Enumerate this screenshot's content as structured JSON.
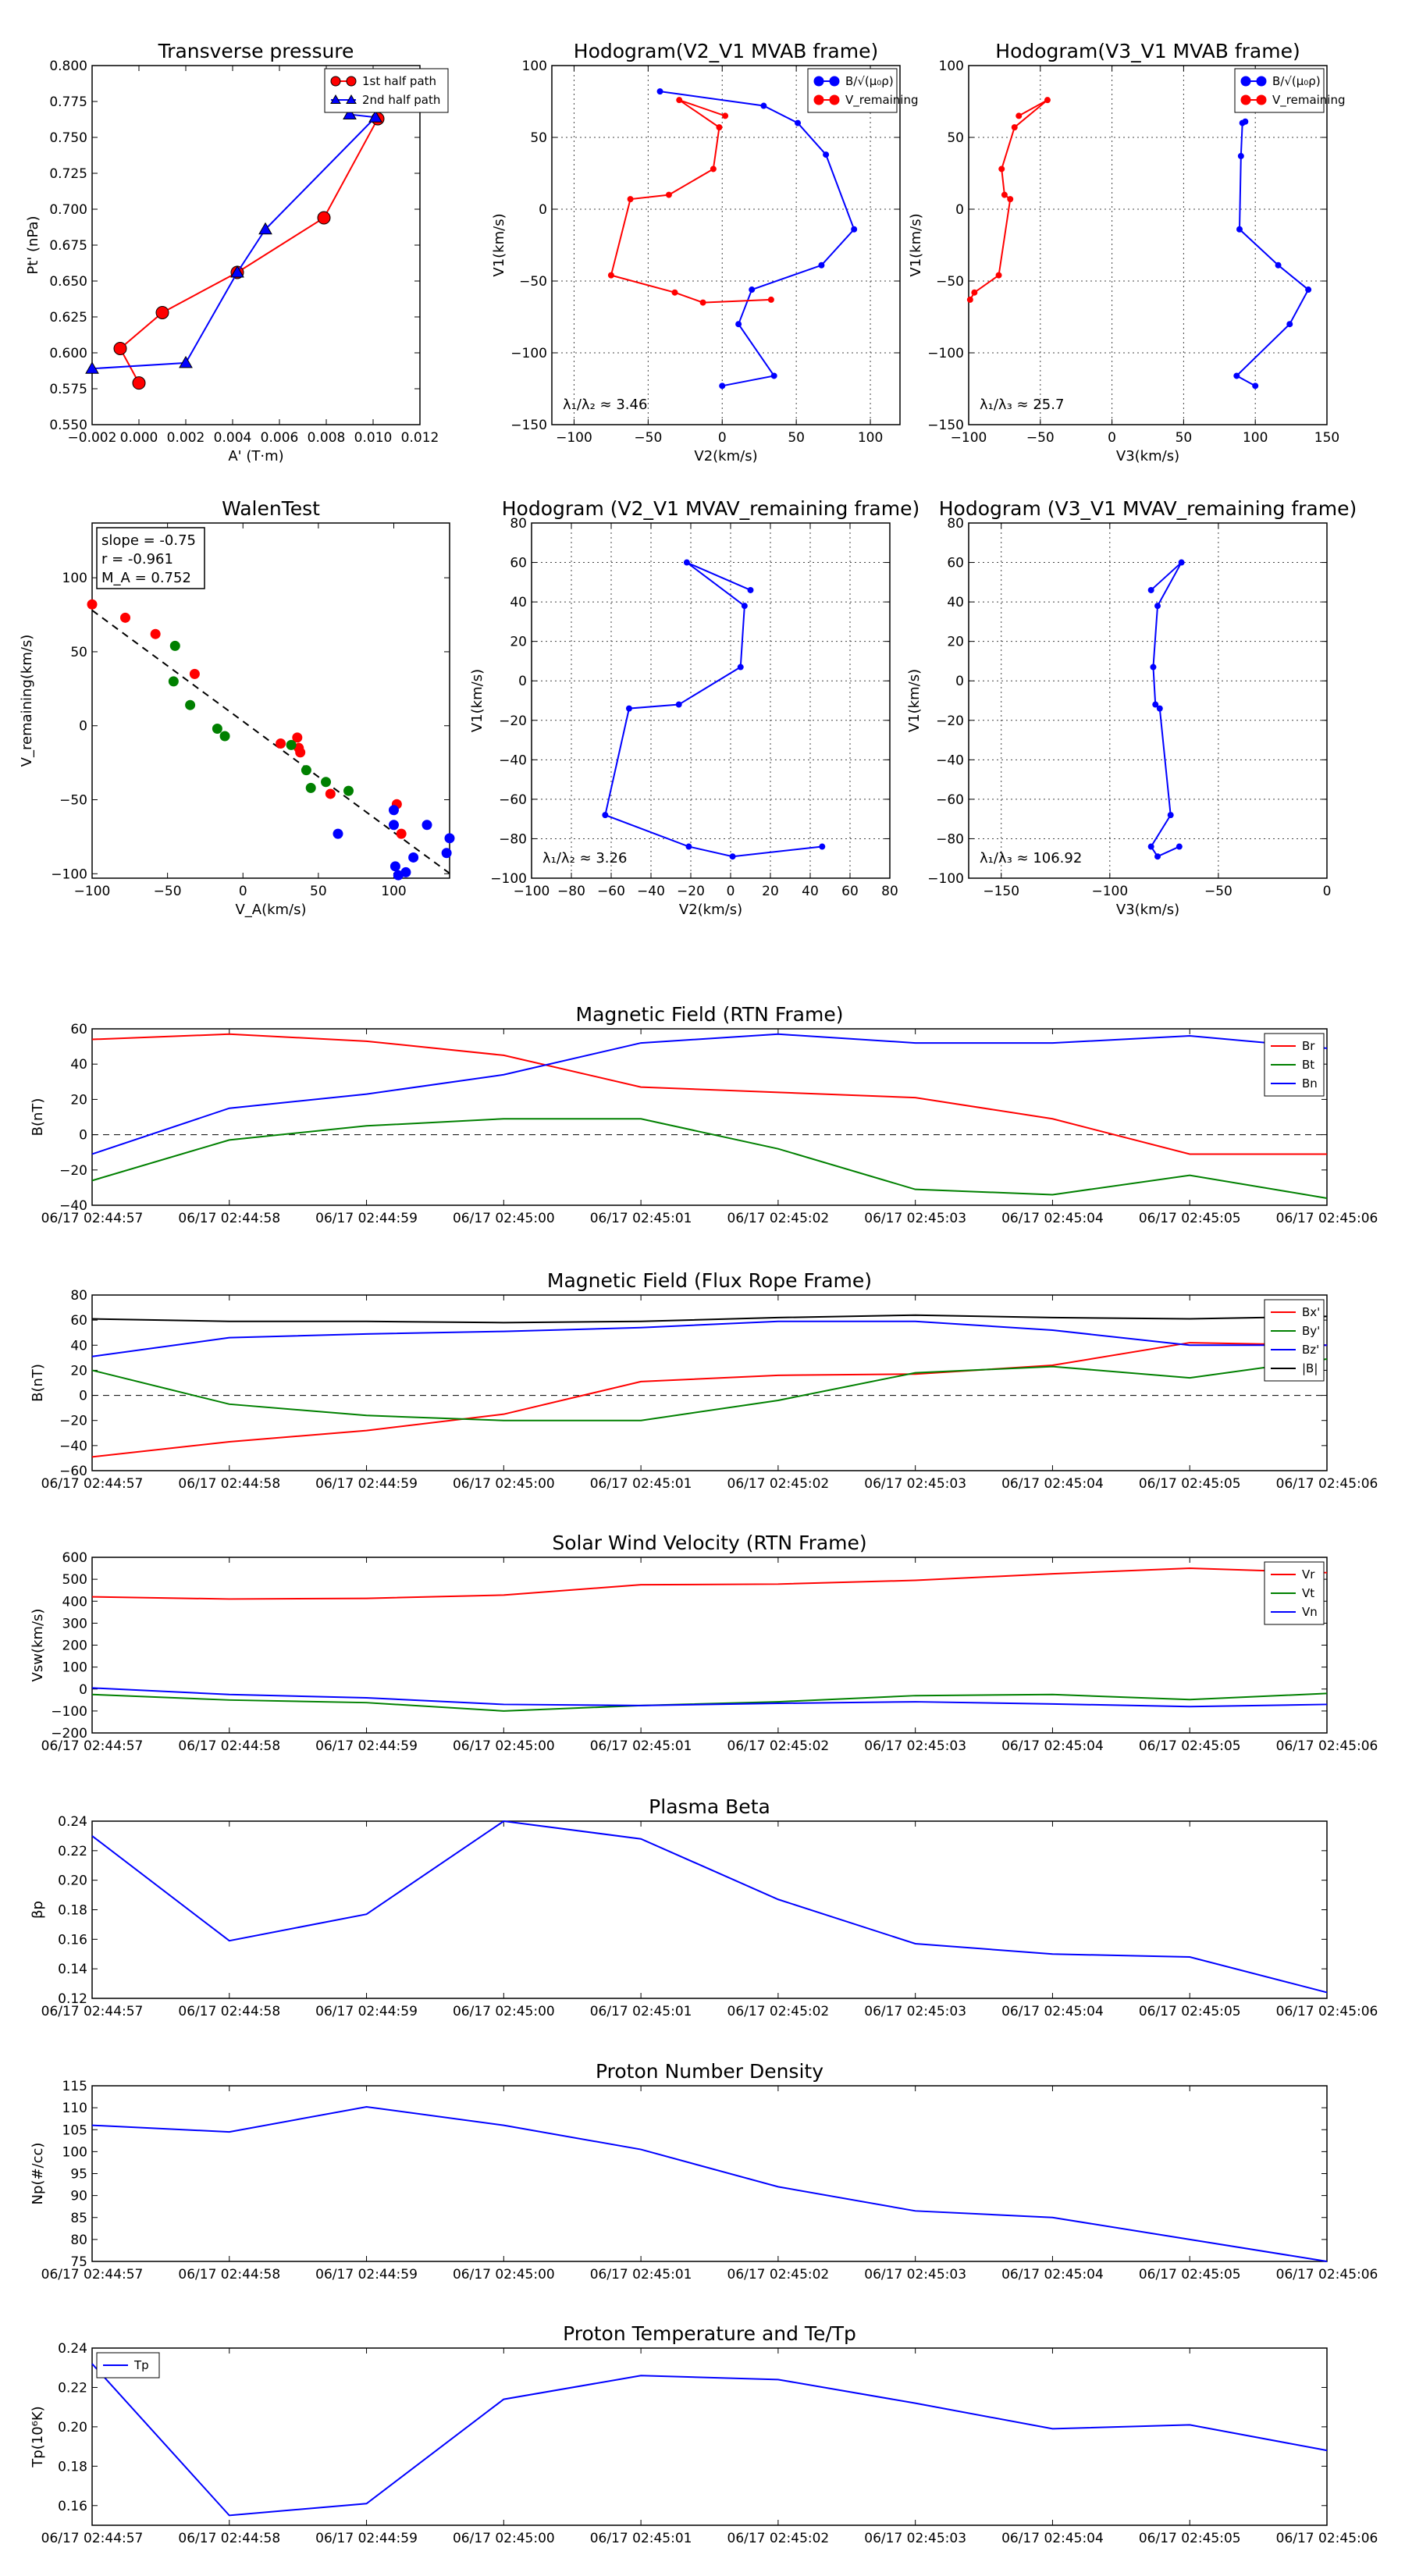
{
  "times": [
    "06/17 02:44:57",
    "06/17 02:44:58",
    "06/17 02:44:59",
    "06/17 02:45:00",
    "06/17 02:45:01",
    "06/17 02:45:02",
    "06/17 02:45:03",
    "06/17 02:45:04",
    "06/17 02:45:05",
    "06/17 02:45:06"
  ],
  "chart_data": [
    {
      "id": "tp",
      "type": "scatter",
      "title": "Transverse pressure",
      "xlabel": "A' (T·m)",
      "ylabel": "Pt' (nPa)",
      "xlim": [
        -0.002,
        0.012
      ],
      "ylim": [
        0.55,
        0.8
      ],
      "xticks": [
        -0.002,
        0.0,
        0.002,
        0.004,
        0.006,
        0.008,
        0.01,
        0.012
      ],
      "xticklabels": [
        "−0.002",
        "0.000",
        "0.002",
        "0.004",
        "0.006",
        "0.008",
        "0.010",
        "0.012"
      ],
      "yticks": [
        0.55,
        0.575,
        0.6,
        0.625,
        0.65,
        0.675,
        0.7,
        0.725,
        0.75,
        0.775,
        0.8
      ],
      "yticklabels": [
        "0.550",
        "0.575",
        "0.600",
        "0.625",
        "0.650",
        "0.675",
        "0.700",
        "0.725",
        "0.750",
        "0.775",
        "0.800"
      ],
      "legend": "top-right",
      "series": [
        {
          "name": "1st half path",
          "color": "#ff0000",
          "marker": "circle",
          "x": [
            0.0,
            -0.0008,
            0.001,
            0.0042,
            0.0079,
            0.0102
          ],
          "y": [
            0.579,
            0.603,
            0.628,
            0.656,
            0.694,
            0.763
          ]
        },
        {
          "name": "2nd half path",
          "color": "#0000ff",
          "marker": "triangle",
          "x": [
            0.009,
            0.0101,
            0.0054,
            0.0042,
            0.002,
            -0.002
          ],
          "y": [
            0.766,
            0.764,
            0.686,
            0.656,
            0.593,
            0.589
          ]
        }
      ]
    },
    {
      "id": "h1",
      "type": "line",
      "title": "Hodogram(V2_V1 MVAB frame)",
      "xlabel": "V2(km/s)",
      "ylabel": "V1(km/s)",
      "xlim": [
        -115,
        120
      ],
      "ylim": [
        -150,
        100
      ],
      "xticks": [
        -100,
        -50,
        0,
        50,
        100
      ],
      "xticklabels": [
        "−100",
        "−50",
        "0",
        "50",
        "100"
      ],
      "yticks": [
        -150,
        -100,
        -50,
        0,
        50,
        100
      ],
      "yticklabels": [
        "−150",
        "−100",
        "−50",
        "0",
        "50",
        "100"
      ],
      "legend": "top-right",
      "annotation": "λ₁/λ₂ ≈ 3.46",
      "series": [
        {
          "name": "B/√(μ₀ρ)",
          "color": "#0000ff",
          "x": [
            -42,
            28,
            51,
            70,
            89,
            67,
            20,
            11,
            35,
            0
          ],
          "y": [
            82,
            72,
            60,
            38,
            -14,
            -39,
            -56,
            -80,
            -116,
            -123
          ]
        },
        {
          "name": "V_remaining",
          "color": "#ff0000",
          "x": [
            2,
            -29,
            -2,
            -6,
            -36,
            -62,
            -75,
            -32,
            -13,
            33
          ],
          "y": [
            65,
            76,
            57,
            28,
            10,
            7,
            -46,
            -58,
            -65,
            -63
          ]
        }
      ]
    },
    {
      "id": "h2",
      "type": "line",
      "title": "Hodogram(V3_V1 MVAB frame)",
      "xlabel": "V3(km/s)",
      "ylabel": "V1(km/s)",
      "xlim": [
        -100,
        150
      ],
      "ylim": [
        -150,
        100
      ],
      "xticks": [
        -100,
        -50,
        0,
        50,
        100,
        150
      ],
      "xticklabels": [
        "−100",
        "−50",
        "0",
        "50",
        "100",
        "150"
      ],
      "yticks": [
        -150,
        -100,
        -50,
        0,
        50,
        100
      ],
      "yticklabels": [
        "−150",
        "−100",
        "−50",
        "0",
        "50",
        "100"
      ],
      "legend": "top-right",
      "annotation": "λ₁/λ₃ ≈ 25.7",
      "series": [
        {
          "name": "B/√(μ₀ρ)",
          "color": "#0000ff",
          "x": [
            93,
            91,
            90,
            89,
            116,
            137,
            124,
            87,
            100
          ],
          "y": [
            61,
            60,
            37,
            -14,
            -39,
            -56,
            -80,
            -116,
            -123
          ]
        },
        {
          "name": "V_remaining",
          "color": "#ff0000",
          "x": [
            -65,
            -45,
            -68,
            -77,
            -75,
            -71,
            -79,
            -96,
            -99
          ],
          "y": [
            65,
            76,
            57,
            28,
            10,
            7,
            -46,
            -58,
            -63
          ]
        }
      ]
    },
    {
      "id": "walen",
      "type": "scatter",
      "title": "WalenTest",
      "xlabel": "V_A(km/s)",
      "ylabel": "V_remaining(km/s)",
      "xlim": [
        -100,
        137
      ],
      "ylim": [
        -103,
        137
      ],
      "xticks": [
        -100,
        -50,
        0,
        50,
        100
      ],
      "xticklabels": [
        "−100",
        "−50",
        "0",
        "50",
        "100"
      ],
      "yticks": [
        -100,
        -50,
        0,
        50,
        100
      ],
      "yticklabels": [
        "−100",
        "−50",
        "0",
        "50",
        "100"
      ],
      "stats": [
        "slope = -0.75",
        "r = -0.961",
        "M_A = 0.752"
      ],
      "fit": {
        "slope": -0.75,
        "intercept": 3
      },
      "series": [
        {
          "name": "red",
          "color": "#ff0000",
          "x": [
            -100,
            -78,
            -58,
            -32,
            25,
            36,
            37,
            38,
            58,
            102,
            105
          ],
          "y": [
            82,
            73,
            62,
            35,
            -12,
            -8,
            -15,
            -18,
            -46,
            -53,
            -73
          ]
        },
        {
          "name": "green",
          "color": "#008000",
          "x": [
            -45,
            -46,
            -35,
            -17,
            -12,
            32,
            42,
            45,
            55,
            70
          ],
          "y": [
            54,
            30,
            14,
            -2,
            -7,
            -13,
            -30,
            -42,
            -38,
            -44
          ]
        },
        {
          "name": "blue",
          "color": "#0000ff",
          "x": [
            63,
            100,
            100,
            103,
            108,
            113,
            122,
            135,
            137,
            101
          ],
          "y": [
            -73,
            -57,
            -67,
            -101,
            -99,
            -89,
            -67,
            -86,
            -76,
            -95
          ]
        }
      ]
    },
    {
      "id": "h3",
      "type": "line",
      "title": "Hodogram (V2_V1 MVAV_remaining frame)",
      "xlabel": "V2(km/s)",
      "ylabel": "V1(km/s)",
      "xlim": [
        -100,
        80
      ],
      "ylim": [
        -100,
        80
      ],
      "xticks": [
        -100,
        -80,
        -60,
        -40,
        -20,
        0,
        20,
        40,
        60,
        80
      ],
      "xticklabels": [
        "−100",
        "−80",
        "−60",
        "−40",
        "−20",
        "0",
        "20",
        "40",
        "60",
        "80"
      ],
      "yticks": [
        -100,
        -80,
        -60,
        -40,
        -20,
        0,
        20,
        40,
        60,
        80
      ],
      "yticklabels": [
        "−100",
        "−80",
        "−60",
        "−40",
        "−20",
        "0",
        "20",
        "40",
        "60",
        "80"
      ],
      "annotation": "λ₁/λ₂ ≈ 3.26",
      "series": [
        {
          "name": "V",
          "color": "#0000ff",
          "x": [
            10,
            -22,
            7,
            5,
            -26,
            -51,
            -63,
            -21,
            1,
            46
          ],
          "y": [
            46,
            60,
            38,
            7,
            -12,
            -14,
            -68,
            -84,
            -89,
            -84
          ]
        }
      ]
    },
    {
      "id": "h4",
      "type": "line",
      "title": "Hodogram (V3_V1 MVAV_remaining frame)",
      "xlabel": "V3(km/s)",
      "ylabel": "V1(km/s)",
      "xlim": [
        -165,
        0
      ],
      "ylim": [
        -100,
        80
      ],
      "xticks": [
        -150,
        -100,
        -50,
        0
      ],
      "xticklabels": [
        "−150",
        "−100",
        "−50",
        "0"
      ],
      "yticks": [
        -100,
        -80,
        -60,
        -40,
        -20,
        0,
        20,
        40,
        60,
        80
      ],
      "yticklabels": [
        "−100",
        "−80",
        "−60",
        "−40",
        "−20",
        "0",
        "20",
        "40",
        "60",
        "80"
      ],
      "annotation": "λ₁/λ₃ ≈ 106.92",
      "series": [
        {
          "name": "V",
          "color": "#0000ff",
          "x": [
            -81,
            -67,
            -78,
            -80,
            -79,
            -77,
            -72,
            -81,
            -78,
            -68
          ],
          "y": [
            46,
            60,
            38,
            7,
            -12,
            -14,
            -68,
            -84,
            -89,
            -84
          ]
        }
      ]
    },
    {
      "id": "magrtn",
      "type": "line",
      "title": "Magnetic Field (RTN Frame)",
      "ylabel": "B(nT)",
      "ylim": [
        -40,
        60
      ],
      "yticks": [
        -40,
        -20,
        0,
        20,
        40,
        60
      ],
      "yticklabels": [
        "−40",
        "−20",
        "0",
        "20",
        "40",
        "60"
      ],
      "zeroline": true,
      "legend": "top-right",
      "series": [
        {
          "name": "Br",
          "color": "#ff0000",
          "values": [
            54,
            57,
            53,
            45,
            27,
            24,
            21,
            9,
            -11,
            -11
          ]
        },
        {
          "name": "Bt",
          "color": "#008000",
          "values": [
            -26,
            -3,
            5,
            9,
            9,
            -8,
            -31,
            -34,
            -23,
            -36
          ]
        },
        {
          "name": "Bn",
          "color": "#0000ff",
          "values": [
            -11,
            15,
            23,
            34,
            52,
            57,
            52,
            52,
            56,
            49
          ]
        }
      ]
    },
    {
      "id": "magfr",
      "type": "line",
      "title": "Magnetic Field (Flux Rope Frame)",
      "ylabel": "B(nT)",
      "ylim": [
        -60,
        80
      ],
      "yticks": [
        -60,
        -40,
        -20,
        0,
        20,
        40,
        60,
        80
      ],
      "yticklabels": [
        "−60",
        "−40",
        "−20",
        "0",
        "20",
        "40",
        "60",
        "80"
      ],
      "zeroline": true,
      "legend": "top-right",
      "series": [
        {
          "name": "Bx'",
          "color": "#ff0000",
          "values": [
            -49,
            -37,
            -28,
            -15,
            11,
            16,
            17,
            24,
            42,
            40
          ]
        },
        {
          "name": "By'",
          "color": "#008000",
          "values": [
            20,
            -7,
            -16,
            -20,
            -20,
            -4,
            18,
            23,
            14,
            29
          ]
        },
        {
          "name": "Bz'",
          "color": "#0000ff",
          "values": [
            31,
            46,
            49,
            51,
            54,
            59,
            59,
            52,
            40,
            40
          ]
        },
        {
          "name": "|B|",
          "color": "#000000",
          "values": [
            61,
            59,
            59,
            58,
            59,
            62,
            64,
            62,
            61,
            63
          ]
        }
      ]
    },
    {
      "id": "vsw",
      "type": "line",
      "title": "Solar Wind Velocity (RTN Frame)",
      "ylabel": "Vsw(km/s)",
      "ylim": [
        -200,
        600
      ],
      "yticks": [
        -200,
        -100,
        0,
        100,
        200,
        300,
        400,
        500,
        600
      ],
      "yticklabels": [
        "−200",
        "−100",
        "0",
        "100",
        "200",
        "300",
        "400",
        "500",
        "600"
      ],
      "legend": "top-right",
      "series": [
        {
          "name": "Vr",
          "color": "#ff0000",
          "values": [
            420,
            410,
            413,
            428,
            475,
            478,
            495,
            525,
            550,
            530
          ]
        },
        {
          "name": "Vt",
          "color": "#008000",
          "values": [
            -25,
            -50,
            -62,
            -100,
            -75,
            -58,
            -30,
            -25,
            -48,
            -20
          ]
        },
        {
          "name": "Vn",
          "color": "#0000ff",
          "values": [
            5,
            -25,
            -40,
            -70,
            -75,
            -65,
            -58,
            -68,
            -80,
            -70
          ]
        }
      ]
    },
    {
      "id": "beta",
      "type": "line",
      "title": "Plasma Beta",
      "ylabel": "βp",
      "ylim": [
        0.12,
        0.24
      ],
      "yticks": [
        0.12,
        0.14,
        0.16,
        0.18,
        0.2,
        0.22,
        0.24
      ],
      "yticklabels": [
        "0.12",
        "0.14",
        "0.16",
        "0.18",
        "0.20",
        "0.22",
        "0.24"
      ],
      "series": [
        {
          "name": "beta",
          "color": "#0000ff",
          "values": [
            0.23,
            0.159,
            0.177,
            0.24,
            0.228,
            0.187,
            0.157,
            0.15,
            0.148,
            0.124
          ]
        }
      ]
    },
    {
      "id": "np",
      "type": "line",
      "title": "Proton Number Density",
      "ylabel": "Np(#/cc)",
      "ylim": [
        75,
        115
      ],
      "yticks": [
        75,
        80,
        85,
        90,
        95,
        100,
        105,
        110,
        115
      ],
      "yticklabels": [
        "75",
        "80",
        "85",
        "90",
        "95",
        "100",
        "105",
        "110",
        "115"
      ],
      "series": [
        {
          "name": "Np",
          "color": "#0000ff",
          "values": [
            106,
            104.5,
            110.2,
            106,
            100.5,
            92,
            86.5,
            85,
            80,
            75
          ]
        }
      ]
    },
    {
      "id": "tpp",
      "type": "line",
      "title": "Proton Temperature and Te/Tp",
      "ylabel": "Tp(10⁶K)",
      "ylim": [
        0.15,
        0.24
      ],
      "yticks": [
        0.16,
        0.18,
        0.2,
        0.22,
        0.24
      ],
      "yticklabels": [
        "0.16",
        "0.18",
        "0.20",
        "0.22",
        "0.24"
      ],
      "legend": "top-left",
      "series": [
        {
          "name": "Tp",
          "color": "#0000ff",
          "values": [
            0.232,
            0.155,
            0.161,
            0.214,
            0.226,
            0.224,
            0.212,
            0.199,
            0.201,
            0.188
          ]
        }
      ]
    }
  ]
}
